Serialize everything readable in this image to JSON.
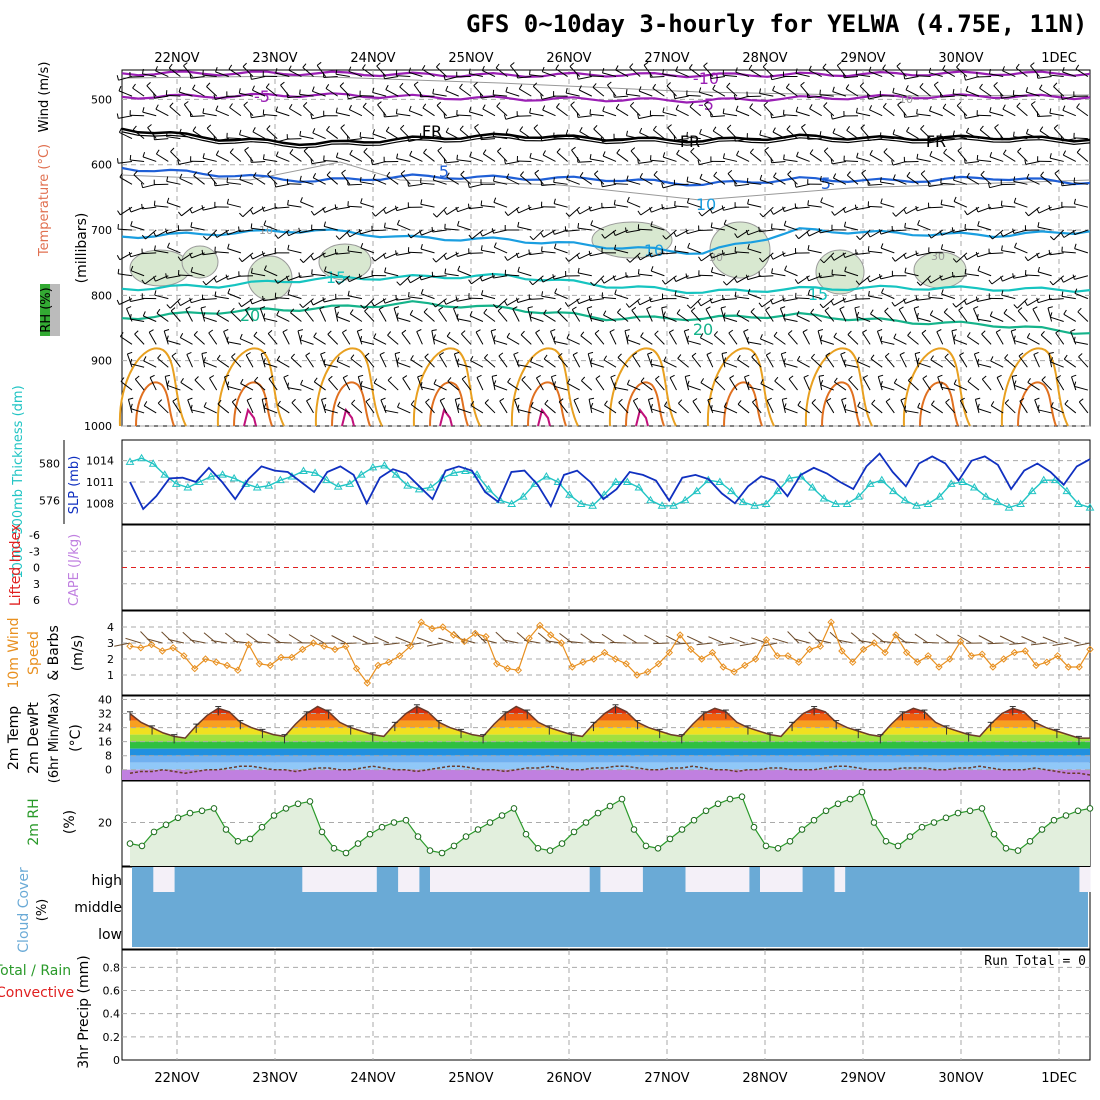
{
  "title": "GFS 0~10day 3-hourly for YELWA (4.75E, 11N)",
  "run_total_label": "Run Total = 0",
  "colors": {
    "purple_contour": "#9a1fb4",
    "blue_contour": "#1f5fd6",
    "lightblue_contour": "#1a9ee0",
    "cyan_contour": "#16c4c0",
    "teal_contour": "#15b38a",
    "orange_contour": "#e8a020",
    "darkorange_contour": "#e07020",
    "magenta_contour": "#c0107a",
    "rh_fill": "#d8e8d0",
    "sky_blue": "#6aaad6",
    "thickness_cyan": "#22c4c4",
    "slp_blue": "#1030c0",
    "wind_orange": "#e89020",
    "rh2m_green": "#2a9a2a",
    "cape_purple": "#c080e0",
    "lifted_red": "#e02020",
    "grid": "#aaaaaa"
  },
  "chart_data": [
    {
      "type": "line",
      "panel": "upper-air",
      "title": "",
      "ylabel": "(millibars)",
      "ylabel_left": "Wind (m/s)",
      "ylabel_left2": "Temperature (°C)",
      "ylabel_rh": "RH (%)",
      "y_ticks": [
        "500",
        "600",
        "700",
        "800",
        "900",
        "1000"
      ],
      "x_date_labels": [
        "22NOV",
        "23NOV",
        "24NOV",
        "25NOV",
        "26NOV",
        "27NOV",
        "28NOV",
        "29NOV",
        "30NOV",
        "1DEC"
      ],
      "contour_labels": [
        "-10",
        "-5",
        "-5",
        "10",
        "FR",
        "FR",
        "FR",
        "5",
        "5",
        "10",
        "10",
        "10",
        "30",
        "30",
        "15",
        "15",
        "20",
        "20"
      ],
      "temperature_contours_mb": [
        {
          "label": "-10",
          "pressure": [
            460,
            460,
            460,
            462,
            463,
            462,
            463,
            462,
            461,
            460,
            461
          ]
        },
        {
          "label": "-5",
          "pressure": [
            496,
            495,
            493,
            496,
            499,
            500,
            502,
            498,
            496,
            495,
            497
          ]
        },
        {
          "label": "FR",
          "pressure": [
            545,
            560,
            568,
            560,
            555,
            560,
            563,
            557,
            560,
            558,
            562
          ]
        },
        {
          "label": "5",
          "pressure": [
            605,
            615,
            625,
            618,
            620,
            622,
            630,
            622,
            625,
            620,
            628
          ]
        },
        {
          "label": "10",
          "pressure": [
            710,
            705,
            700,
            712,
            715,
            725,
            735,
            700,
            705,
            708,
            702
          ]
        },
        {
          "label": "15",
          "pressure": [
            790,
            785,
            775,
            772,
            770,
            785,
            795,
            790,
            788,
            790,
            792
          ]
        },
        {
          "label": "20",
          "pressure": [
            835,
            825,
            820,
            812,
            820,
            835,
            835,
            830,
            840,
            845,
            858
          ]
        }
      ]
    },
    {
      "type": "line",
      "panel": "thickness-slp",
      "ylabel_left": "1000~500mb Thickness (dm)",
      "ylabel_right": "SLP (mb)",
      "y_ticks_left": [
        "580",
        "576"
      ],
      "y_ticks_right": [
        "1014",
        "1011",
        "1008"
      ],
      "series": [
        {
          "name": "Thickness",
          "values": [
            580.2,
            580.6,
            580.0,
            578.8,
            577.8,
            577.4,
            578.0,
            578.6,
            578.8,
            578.4,
            577.8,
            577.4,
            577.6,
            578.2,
            578.6,
            579.2,
            579.0,
            578.2,
            577.5,
            577.8,
            578.8,
            579.6,
            579.8,
            578.8,
            577.6,
            577.2,
            577.4,
            578.4,
            579.0,
            579.2,
            578.8,
            577.2,
            576.0,
            575.6,
            576.4,
            577.8,
            578.6,
            578.0,
            576.6,
            575.6,
            575.4,
            576.6,
            578.0,
            578.0,
            577.4,
            576.0,
            575.4,
            575.4,
            576.0,
            577.0,
            578.2,
            578.0,
            577.0,
            575.8,
            575.4,
            575.6,
            577.0,
            578.4,
            578.6,
            577.4,
            576.2,
            575.6,
            575.6,
            576.4,
            577.8,
            578.2,
            577.0,
            576.0,
            575.4,
            575.6,
            576.4,
            577.8,
            578.0,
            577.4,
            576.4,
            575.8,
            575.2,
            575.6,
            577.0,
            578.2,
            578.2,
            577.0,
            575.6,
            575.2
          ]
        },
        {
          "name": "SLP",
          "values": [
            1011.0,
            1007.2,
            1009.0,
            1011.5,
            1011.6,
            1011.0,
            1013.0,
            1011.0,
            1008.6,
            1011.4,
            1013.2,
            1012.6,
            1012.4,
            1011.0,
            1009.6,
            1012.4,
            1013.2,
            1012.0,
            1008.0,
            1011.6,
            1012.8,
            1012.2,
            1010.4,
            1008.6,
            1012.6,
            1013.2,
            1012.6,
            1009.6,
            1008.2,
            1012.4,
            1012.6,
            1010.6,
            1007.6,
            1012.0,
            1012.6,
            1011.0,
            1008.6,
            1010.0,
            1012.4,
            1012.0,
            1011.2,
            1008.4,
            1011.6,
            1012.0,
            1011.4,
            1009.4,
            1008.0,
            1010.4,
            1011.8,
            1011.2,
            1009.0,
            1012.0,
            1013.0,
            1012.2,
            1011.0,
            1010.0,
            1013.2,
            1015.0,
            1012.4,
            1010.4,
            1013.6,
            1014.6,
            1013.6,
            1011.2,
            1014.0,
            1014.6,
            1013.4,
            1010.0,
            1012.6,
            1013.6,
            1012.4,
            1010.6,
            1013.2,
            1014.2
          ]
        }
      ]
    },
    {
      "type": "line",
      "panel": "stability",
      "ylabel_left": "Lifted Index",
      "ylabel_right": "CAPE (J/kg)",
      "y_ticks": [
        "-6",
        "-3",
        "0",
        "3",
        "6"
      ],
      "series": [
        {
          "name": "Lifted Index",
          "values": []
        }
      ]
    },
    {
      "type": "line",
      "panel": "10m-wind",
      "ylabel": "10m Wind Speed & Barbs (m/s)",
      "y_ticks": [
        "4",
        "3",
        "2",
        "1"
      ],
      "series": [
        {
          "name": "10m Wind Speed",
          "values": [
            2.8,
            2.7,
            2.9,
            2.5,
            2.7,
            2.2,
            1.4,
            2.0,
            1.8,
            1.6,
            1.3,
            2.9,
            1.7,
            1.6,
            2.1,
            2.1,
            2.6,
            3.0,
            2.8,
            2.6,
            2.8,
            1.4,
            0.5,
            1.6,
            1.8,
            2.2,
            2.8,
            4.3,
            3.9,
            4.0,
            3.5,
            3.1,
            3.6,
            3.4,
            1.7,
            1.4,
            1.3,
            3.3,
            4.1,
            3.5,
            3.0,
            1.5,
            1.8,
            2.0,
            2.4,
            2.0,
            1.7,
            1.0,
            1.2,
            1.7,
            2.4,
            3.5,
            2.6,
            2.0,
            2.4,
            1.5,
            1.2,
            1.6,
            2.0,
            3.2,
            2.2,
            2.2,
            1.8,
            2.6,
            2.8,
            4.3,
            2.5,
            1.8,
            2.6,
            3.0,
            2.4,
            3.5,
            2.4,
            1.8,
            2.2,
            1.5,
            2.0,
            3.1,
            2.2,
            2.3,
            1.5,
            2.0,
            2.4,
            2.5,
            1.6,
            1.8,
            2.2,
            1.5,
            1.5,
            2.6
          ]
        }
      ]
    },
    {
      "type": "area",
      "panel": "2m-temp",
      "ylabel": "2m Temp 2m DewPt (6hr Min/Max) (°C)",
      "y_ticks": [
        "40",
        "32",
        "24",
        "16",
        "8",
        "0"
      ],
      "series": [
        {
          "name": "2m Temp",
          "values": [
            32,
            27,
            24,
            21,
            19,
            18,
            25,
            31,
            35,
            33,
            27,
            24,
            22,
            20,
            19,
            26,
            32,
            36,
            33,
            27,
            24,
            22,
            20,
            19,
            26,
            32,
            36,
            33,
            27,
            24,
            22,
            20,
            19,
            26,
            32,
            36,
            33,
            27,
            24,
            22,
            20,
            19,
            26,
            32,
            36,
            33,
            27,
            24,
            22,
            20,
            19,
            26,
            32,
            35,
            33,
            27,
            24,
            22,
            20,
            19,
            26,
            32,
            35,
            33,
            27,
            24,
            22,
            20,
            19,
            26,
            32,
            35,
            33,
            27,
            24,
            22,
            20,
            19,
            26,
            32,
            35,
            33,
            27,
            24,
            22,
            20,
            18,
            18
          ]
        },
        {
          "name": "2m DewPt",
          "values": [
            -2,
            -1,
            -1,
            0,
            -1,
            -2,
            -1,
            0,
            0,
            1,
            2,
            2,
            1,
            0,
            0,
            -1,
            0,
            1,
            1,
            0,
            0,
            1,
            2,
            1,
            0,
            0,
            -1,
            0,
            1,
            2,
            2,
            1,
            0,
            0,
            -1,
            0,
            1,
            1,
            2,
            1,
            0,
            0,
            1,
            1,
            2,
            2,
            1,
            0,
            0,
            1,
            1,
            2,
            1,
            0,
            0,
            -1,
            0,
            0,
            1,
            1,
            0,
            0,
            0,
            1,
            2,
            2,
            1,
            0,
            0,
            0,
            1,
            1,
            1,
            0,
            0,
            1,
            1,
            2,
            1,
            0,
            0,
            0,
            1,
            0,
            -1,
            -2,
            -2,
            -3
          ]
        }
      ]
    },
    {
      "type": "area",
      "panel": "2m-rh",
      "ylabel": "2m RH (%)",
      "y_ticks": [
        "20"
      ],
      "series": [
        {
          "name": "2m RH",
          "values": [
            11,
            10,
            16,
            19,
            22,
            24,
            25,
            26,
            17,
            12,
            13,
            18,
            23,
            26,
            28,
            29,
            16,
            9,
            7,
            11,
            15,
            18,
            20,
            21,
            14,
            8,
            7,
            10,
            14,
            17,
            20,
            23,
            26,
            15,
            9,
            8,
            11,
            16,
            20,
            24,
            27,
            30,
            17,
            10,
            9,
            13,
            17,
            21,
            25,
            28,
            30,
            31,
            18,
            10,
            9,
            12,
            17,
            21,
            25,
            28,
            30,
            33,
            20,
            12,
            10,
            14,
            18,
            20,
            22,
            24,
            25,
            26,
            15,
            9,
            8,
            12,
            17,
            21,
            23,
            25,
            26
          ]
        }
      ]
    },
    {
      "type": "bar",
      "panel": "cloud-cover",
      "ylabel": "Cloud Cover (%)",
      "y_ticks": [
        "high",
        "middle",
        "low"
      ],
      "series": [
        {
          "name": "high cloud",
          "values": [
            1,
            1,
            0,
            0,
            1,
            1,
            1,
            1,
            1,
            1,
            1,
            1,
            1,
            1,
            1,
            1,
            0,
            0,
            0,
            0,
            0,
            0,
            0,
            1,
            1,
            0,
            0,
            1,
            0,
            0,
            0,
            0,
            0,
            0,
            0,
            0,
            0,
            0,
            0,
            0,
            0,
            0,
            0,
            1,
            0,
            0,
            0,
            0,
            1,
            1,
            1,
            1,
            0,
            0,
            0,
            0,
            0,
            0,
            1,
            0,
            0,
            0,
            0,
            1,
            1,
            1,
            0,
            1,
            1,
            1,
            1,
            1,
            1,
            1,
            1,
            1,
            1,
            1,
            1,
            1,
            1,
            1,
            1,
            1,
            1,
            1,
            1,
            1,
            1,
            0
          ]
        }
      ]
    },
    {
      "type": "bar",
      "panel": "precip",
      "ylabel": "3hr Precip (mm)",
      "ylabel_left": "Total / Rain",
      "ylabel_left2": "Convective",
      "y_ticks": [
        "0.8",
        "0.6",
        "0.4",
        "0.2",
        "0"
      ],
      "series": [
        {
          "name": "3hr Precip",
          "values": []
        }
      ]
    }
  ]
}
